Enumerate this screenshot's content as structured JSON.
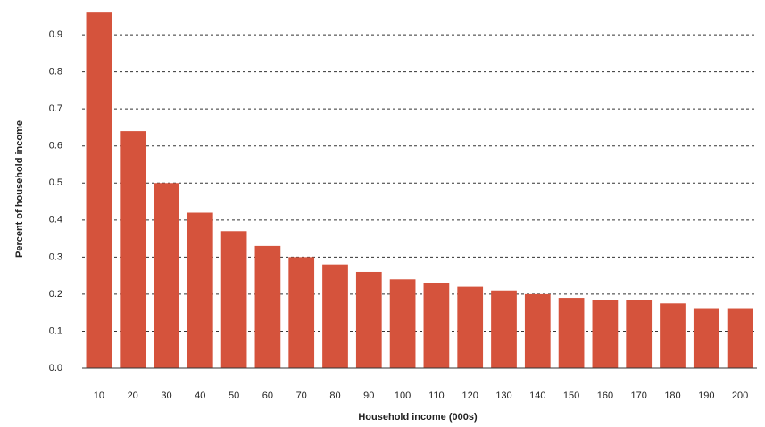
{
  "chart_data": {
    "type": "bar",
    "x_label": "Household income (000s)",
    "y_label": "Percent of household income",
    "categories": [
      "10",
      "20",
      "30",
      "40",
      "50",
      "60",
      "70",
      "80",
      "90",
      "100",
      "110",
      "120",
      "130",
      "140",
      "150",
      "160",
      "170",
      "180",
      "190",
      "200"
    ],
    "values": [
      0.96,
      0.64,
      0.5,
      0.42,
      0.37,
      0.33,
      0.3,
      0.28,
      0.26,
      0.24,
      0.23,
      0.22,
      0.21,
      0.2,
      0.19,
      0.185,
      0.185,
      0.175,
      0.16,
      0.16
    ],
    "color": "#d5533c",
    "ylim": [
      0,
      0.97
    ],
    "yticks": [
      {
        "value": 0,
        "label": "0.0"
      },
      0.1,
      0.2,
      0.3,
      0.4,
      0.5,
      0.6,
      0.7,
      0.8,
      0.9
    ],
    "grid": true
  }
}
